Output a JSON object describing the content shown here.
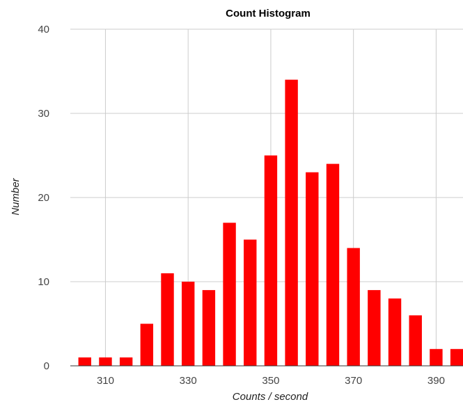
{
  "chart_data": {
    "type": "bar",
    "title": "Count Histogram",
    "xlabel": "Counts / second",
    "ylabel": "Number",
    "x": [
      305,
      310,
      315,
      320,
      325,
      330,
      335,
      340,
      345,
      350,
      355,
      360,
      365,
      370,
      375,
      380,
      385,
      390,
      395
    ],
    "values": [
      1,
      1,
      1,
      5,
      11,
      10,
      9,
      17,
      15,
      25,
      34,
      23,
      24,
      14,
      9,
      8,
      6,
      2,
      2
    ],
    "xticks": [
      310,
      330,
      350,
      370,
      390
    ],
    "yticks": [
      0,
      10,
      20,
      30,
      40
    ],
    "xlim": [
      301.5,
      396.5
    ],
    "ylim": [
      0,
      40
    ],
    "grid": true,
    "legend": "none",
    "bar_color": "#ff0000",
    "bin_width": 5
  }
}
